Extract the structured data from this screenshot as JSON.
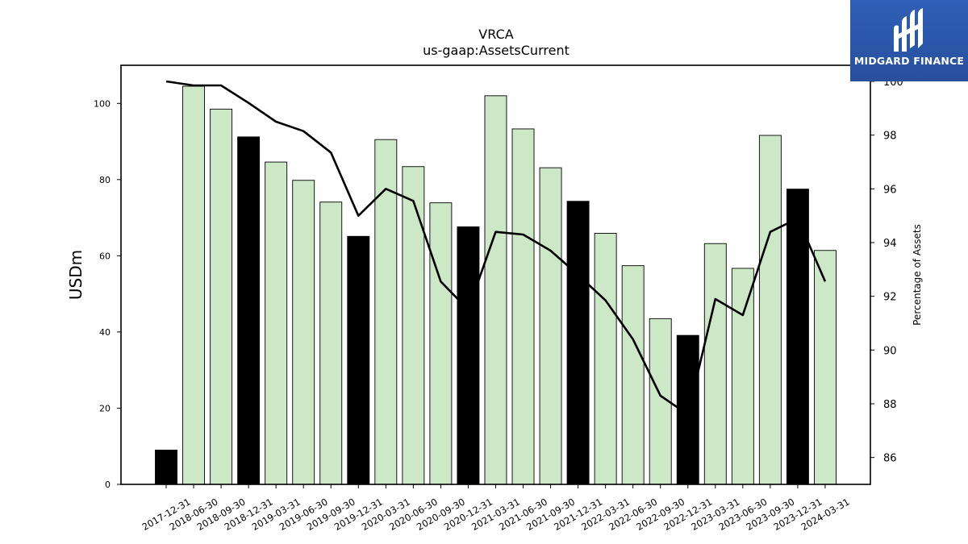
{
  "chart_data": {
    "type": "bar",
    "title": "VRCA",
    "subtitle": "us-gaap:AssetsCurrent",
    "ylabel": "USDm",
    "y2label": "Percentage of Assets",
    "ylim": [
      0,
      110
    ],
    "y2lim": [
      85,
      100.6
    ],
    "yticks": [
      0,
      20,
      40,
      60,
      80,
      100
    ],
    "y2ticks": [
      86,
      88,
      90,
      92,
      94,
      96,
      98,
      100
    ],
    "categories": [
      "2017-12-31",
      "2018-06-30",
      "2018-09-30",
      "2018-12-31",
      "2019-03-31",
      "2019-06-30",
      "2019-09-30",
      "2019-12-31",
      "2020-03-31",
      "2020-06-30",
      "2020-09-30",
      "2020-12-31",
      "2021-03-31",
      "2021-06-30",
      "2021-09-30",
      "2021-12-31",
      "2022-03-31",
      "2022-06-30",
      "2022-09-30",
      "2022-12-31",
      "2023-03-31",
      "2023-06-30",
      "2023-09-30",
      "2023-12-31",
      "2024-03-31"
    ],
    "series": [
      {
        "axis": "left",
        "kind": "bar",
        "values": [
          9.0,
          104.5,
          98.5,
          91.2,
          84.6,
          79.8,
          74.1,
          65.1,
          90.5,
          83.4,
          73.9,
          67.6,
          102.0,
          93.3,
          83.1,
          74.3,
          65.9,
          57.4,
          43.5,
          39.1,
          63.2,
          56.7,
          91.6,
          77.5,
          61.4
        ],
        "annual_flags": [
          true,
          false,
          false,
          true,
          false,
          false,
          false,
          true,
          false,
          false,
          false,
          true,
          false,
          false,
          false,
          true,
          false,
          false,
          false,
          true,
          false,
          false,
          false,
          true,
          false
        ]
      },
      {
        "axis": "right",
        "kind": "line",
        "values": [
          100.0,
          99.85,
          99.85,
          99.2,
          98.5,
          98.15,
          97.35,
          95.0,
          96.0,
          95.55,
          92.55,
          91.5,
          94.4,
          94.3,
          93.7,
          92.8,
          91.85,
          90.4,
          88.3,
          87.6,
          91.9,
          91.3,
          94.4,
          94.9,
          92.55
        ]
      }
    ],
    "colors": {
      "annual_bar": "#000000",
      "quarter_bar": "#cce8c6",
      "bar_edge": "#000000",
      "line": "#000000"
    },
    "grid": false
  },
  "logo": {
    "text": "MIDGARD FINANCE",
    "bg": "#2b5bb0"
  }
}
